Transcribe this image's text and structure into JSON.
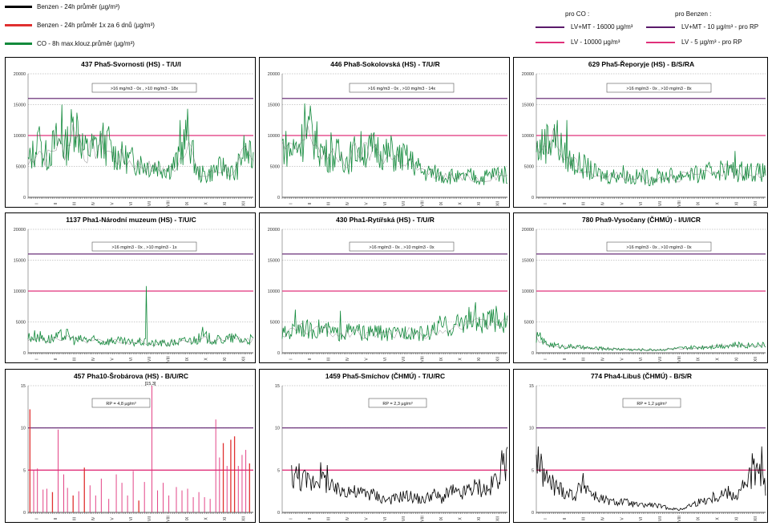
{
  "legend": {
    "items": [
      {
        "label": "Benzen - 24h průměr (µg/m³)",
        "color": "#000000"
      },
      {
        "label": "Benzen - 24h průměr 1x za 6 dnů (µg/m³)",
        "color": "#e03030"
      },
      {
        "label": "CO - 8h max.klouz.průměr (µg/m³)",
        "color": "#138a3c"
      }
    ],
    "co_heading": "pro CO :",
    "co_items": [
      {
        "label": "LV+MT - 16000 µg/m³",
        "color": "#5a1a6a"
      },
      {
        "label": "LV     - 10000 µg/m³",
        "color": "#e0307a"
      }
    ],
    "benzen_heading": "pro Benzen :",
    "benzen_items": [
      {
        "label": "LV+MT - 10 µg/m³ - pro RP",
        "color": "#5a1a6a"
      },
      {
        "label": "LV     - 5 µg/m³ - pro RP",
        "color": "#e0307a"
      }
    ]
  },
  "months": [
    "I",
    "II",
    "III",
    "IV",
    "V",
    "VI",
    "VII",
    "VIII",
    "IX",
    "X",
    "XI",
    "XII"
  ],
  "colors": {
    "co": "#138a3c",
    "benzen": "#000000",
    "benzen6": "#e03030",
    "lvmt": "#5a1a6a",
    "lv": "#e0307a",
    "grid": "#999999"
  },
  "chart_data": [
    {
      "type": "line",
      "title": "437 Pha5-Svornosti (HS) - T/U/I",
      "pollutant": "CO",
      "ylim": [
        0,
        20000
      ],
      "yticks": [
        0,
        5000,
        10000,
        15000,
        20000
      ],
      "limits": [
        16000,
        10000
      ],
      "annotation": ">16 mg/m3 - 0x  , >10 mg/m3 - 18x",
      "x_months": [
        0,
        0.5,
        1,
        1.5,
        2,
        2.5,
        3,
        3.5,
        4,
        4.5,
        5,
        5.5,
        6,
        6.5,
        7,
        7.5,
        8,
        8.5,
        9,
        9.5,
        10,
        10.5,
        11,
        11.5,
        12
      ],
      "values": [
        5500,
        8500,
        6500,
        9000,
        8000,
        12500,
        7500,
        8000,
        9000,
        7000,
        6500,
        6000,
        5500,
        5000,
        5000,
        4500,
        6000,
        10500,
        4000,
        3500,
        4500,
        5000,
        3500,
        7500,
        6000
      ],
      "peaks": [
        {
          "x": 0.6,
          "y": 11500
        },
        {
          "x": 1.8,
          "y": 15000
        },
        {
          "x": 4.3,
          "y": 11500
        },
        {
          "x": 8.1,
          "y": 12500
        }
      ]
    },
    {
      "type": "line",
      "title": "446 Pha8-Sokolovská (HS) - T/U/R",
      "pollutant": "CO",
      "ylim": [
        0,
        20000
      ],
      "yticks": [
        0,
        5000,
        10000,
        15000,
        20000
      ],
      "limits": [
        16000,
        10000
      ],
      "annotation": ">16 mg/m3 - 0x  , >10 mg/m3 - 14x",
      "x_months": [
        0,
        0.5,
        1,
        1.5,
        2,
        2.5,
        3,
        3.5,
        4,
        4.5,
        5,
        5.5,
        6,
        6.5,
        7,
        7.5,
        8,
        8.5,
        9,
        9.5,
        10,
        10.5,
        11,
        11.5,
        12
      ],
      "values": [
        8500,
        7500,
        9000,
        11000,
        8000,
        6500,
        7000,
        6000,
        8000,
        7500,
        8000,
        7000,
        6500,
        6500,
        5500,
        4000,
        4000,
        3500,
        3500,
        3000,
        3500,
        3000,
        3500,
        4000,
        3500
      ],
      "peaks": [
        {
          "x": 1.2,
          "y": 15200
        },
        {
          "x": 2.6,
          "y": 10500
        },
        {
          "x": 5.8,
          "y": 10000
        }
      ]
    },
    {
      "type": "line",
      "title": "629 Pha5-Řeporyje (HS) - B/S/RA",
      "pollutant": "CO",
      "ylim": [
        0,
        20000
      ],
      "yticks": [
        0,
        5000,
        10000,
        15000,
        20000
      ],
      "limits": [
        16000,
        10000
      ],
      "annotation": ">16 mg/m3 - 0x  , >10 mg/m3 - 8x",
      "x_months": [
        0,
        0.5,
        1,
        1.5,
        2,
        2.5,
        3,
        3.5,
        4,
        4.5,
        5,
        5.5,
        6,
        6.5,
        7,
        7.5,
        8,
        8.5,
        9,
        9.5,
        10,
        10.5,
        11,
        11.5,
        12
      ],
      "values": [
        7500,
        9000,
        10000,
        6500,
        5500,
        5000,
        4000,
        3500,
        3500,
        4000,
        3000,
        3500,
        3000,
        3500,
        3500,
        3500,
        4000,
        3500,
        4000,
        4500,
        4500,
        4000,
        4500,
        4000,
        4000
      ],
      "peaks": [
        {
          "x": 0.6,
          "y": 11500
        },
        {
          "x": 1.6,
          "y": 12500
        },
        {
          "x": 10.4,
          "y": 7500
        }
      ]
    },
    {
      "type": "line",
      "title": "1137 Pha1-Národní muzeum (HS) - T/U/C",
      "pollutant": "CO",
      "ylim": [
        0,
        20000
      ],
      "yticks": [
        0,
        5000,
        10000,
        15000,
        20000
      ],
      "limits": [
        16000,
        10000
      ],
      "annotation": ">16 mg/m3 - 0x  , >10 mg/m3 - 1x",
      "x_months": [
        0,
        0.5,
        1,
        1.5,
        2,
        2.5,
        3,
        3.5,
        4,
        4.5,
        5,
        5.5,
        6,
        6.5,
        7,
        7.5,
        8,
        8.5,
        9,
        9.5,
        10,
        10.5,
        11,
        11.5,
        12
      ],
      "values": [
        2500,
        2800,
        2200,
        2400,
        3000,
        2000,
        2200,
        2000,
        1800,
        2000,
        1800,
        1600,
        1800,
        1500,
        1600,
        1500,
        1800,
        2000,
        2200,
        2500,
        2000,
        2200,
        2400,
        2000,
        2200
      ],
      "peaks": [
        {
          "x": 6.3,
          "y": 10800
        },
        {
          "x": 9.3,
          "y": 4200
        }
      ]
    },
    {
      "type": "line",
      "title": "430 Pha1-Rytířská (HS) - T/U/R",
      "pollutant": "CO",
      "ylim": [
        0,
        20000
      ],
      "yticks": [
        0,
        5000,
        10000,
        15000,
        20000
      ],
      "limits": [
        16000,
        10000
      ],
      "annotation": ">16 mg/m3 - 0x  , >10 mg/m3 - 0x",
      "x_months": [
        0,
        0.5,
        1,
        1.5,
        2,
        2.5,
        3,
        3.5,
        4,
        4.5,
        5,
        5.5,
        6,
        6.5,
        7,
        7.5,
        8,
        8.5,
        9,
        9.5,
        10,
        10.5,
        11,
        11.5,
        12
      ],
      "values": [
        3000,
        3500,
        4500,
        3500,
        4000,
        3500,
        3000,
        3500,
        3500,
        3000,
        3500,
        3000,
        3000,
        3500,
        3500,
        3000,
        3500,
        4500,
        4000,
        5000,
        5500,
        4500,
        5000,
        5500,
        4500
      ],
      "peaks": [
        {
          "x": 0.7,
          "y": 7000
        },
        {
          "x": 3.1,
          "y": 6800
        },
        {
          "x": 10.3,
          "y": 8200
        },
        {
          "x": 11.4,
          "y": 7600
        }
      ]
    },
    {
      "type": "line",
      "title": "780 Pha9-Vysočany (ČHMÚ) - I/U/ICR",
      "pollutant": "CO",
      "ylim": [
        0,
        20000
      ],
      "yticks": [
        0,
        5000,
        10000,
        15000,
        20000
      ],
      "limits": [
        16000,
        10000
      ],
      "annotation": ">16 mg/m3 - 0x  , >10 mg/m3 - 0x",
      "x_months": [
        0,
        0.5,
        1,
        1.5,
        2,
        2.5,
        3,
        3.5,
        4,
        4.5,
        5,
        5.5,
        6,
        6.5,
        7,
        7.5,
        8,
        8.5,
        9,
        9.5,
        10,
        10.5,
        11,
        11.5,
        12
      ],
      "values": [
        2500,
        1500,
        1200,
        1000,
        1000,
        800,
        700,
        700,
        600,
        600,
        500,
        500,
        500,
        500,
        600,
        700,
        800,
        900,
        1000,
        1100,
        1200,
        1300,
        1200,
        1400,
        1200
      ],
      "peaks": [
        {
          "x": 0.2,
          "y": 3300
        }
      ]
    },
    {
      "type": "bar",
      "title": "457 Pha10-Šrobárova (HS) - B/U/RC",
      "pollutant": "Benzen",
      "ylim": [
        0,
        15
      ],
      "yticks": [
        0,
        5,
        10,
        15
      ],
      "limits": [
        10,
        5
      ],
      "annotation": "RP = 4,8 µg/m³",
      "peak_label": "[15,3]",
      "x_months": [
        0.1,
        0.3,
        0.5,
        0.8,
        1.0,
        1.3,
        1.6,
        1.9,
        2.1,
        2.4,
        2.7,
        3.0,
        3.3,
        3.6,
        3.9,
        4.3,
        4.7,
        5.0,
        5.3,
        5.6,
        5.9,
        6.2,
        6.6,
        6.9,
        7.2,
        7.5,
        7.9,
        8.2,
        8.5,
        8.8,
        9.1,
        9.4,
        9.7,
        10.0,
        10.2,
        10.4,
        10.6,
        10.8,
        11.0,
        11.2,
        11.4,
        11.6,
        11.8
      ],
      "values": [
        12.2,
        5.0,
        5.2,
        2.7,
        2.8,
        2.4,
        9.8,
        4.5,
        2.9,
        2.0,
        2.5,
        5.3,
        3.2,
        2.0,
        4.0,
        1.6,
        4.5,
        3.5,
        2.0,
        4.9,
        1.4,
        3.6,
        15.3,
        2.6,
        3.5,
        2.0,
        3.0,
        2.6,
        2.8,
        1.8,
        2.4,
        1.8,
        1.6,
        11.0,
        6.5,
        8.2,
        5.5,
        8.6,
        9.0,
        5.5,
        6.8,
        7.4,
        5.8
      ],
      "red_indices": [
        0,
        5,
        9,
        11,
        20,
        35,
        37,
        38,
        42
      ]
    },
    {
      "type": "line",
      "title": "1459 Pha5-Smíchov (ČHMÚ) - T/U/RC",
      "pollutant": "Benzen",
      "ylim": [
        0,
        15
      ],
      "yticks": [
        0,
        5,
        10,
        15
      ],
      "limits": [
        10,
        5
      ],
      "annotation": "RP = 2,3 µg/m³",
      "x_months": [
        0.5,
        1,
        1.5,
        2,
        2.5,
        3,
        3.5,
        4,
        4.5,
        5,
        5.5,
        6,
        6.5,
        7,
        7.5,
        8,
        8.5,
        9,
        9.5,
        10,
        10.5,
        11,
        11.5,
        12
      ],
      "values": [
        4.5,
        4.0,
        3.5,
        4.5,
        3.0,
        2.5,
        2.8,
        2.2,
        2.4,
        2.0,
        1.5,
        1.6,
        2.0,
        1.8,
        1.4,
        2.2,
        1.6,
        2.5,
        2.0,
        2.8,
        3.0,
        2.5,
        4.5,
        6.5
      ],
      "peaks": [
        {
          "x": 0.9,
          "y": 5.8
        },
        {
          "x": 2.4,
          "y": 5.6
        },
        {
          "x": 11.8,
          "y": 7.0
        }
      ]
    },
    {
      "type": "line",
      "title": "774 Pha4-Libuš (ČHMÚ) - B/S/R",
      "pollutant": "Benzen",
      "ylim": [
        0,
        15
      ],
      "yticks": [
        0,
        5,
        10,
        15
      ],
      "limits": [
        10,
        5
      ],
      "annotation": "RP = 1,2 µg/m³",
      "x_months": [
        0,
        0.5,
        1,
        1.5,
        2,
        2.5,
        3,
        3.5,
        4,
        4.5,
        5,
        5.5,
        6,
        6.5,
        7,
        7.5,
        8,
        8.5,
        9,
        9.5,
        10,
        10.5,
        11,
        11.5,
        12
      ],
      "values": [
        6.0,
        4.0,
        3.0,
        2.5,
        2.0,
        3.5,
        2.0,
        1.5,
        1.2,
        1.3,
        1.0,
        0.8,
        0.9,
        0.7,
        0.5,
        0.3,
        0.8,
        1.2,
        1.6,
        2.0,
        2.4,
        2.0,
        3.5,
        5.0,
        3.0
      ],
      "peaks": [
        {
          "x": 0.1,
          "y": 7.8
        },
        {
          "x": 11.3,
          "y": 7.0
        },
        {
          "x": 11.8,
          "y": 7.8
        }
      ]
    }
  ]
}
